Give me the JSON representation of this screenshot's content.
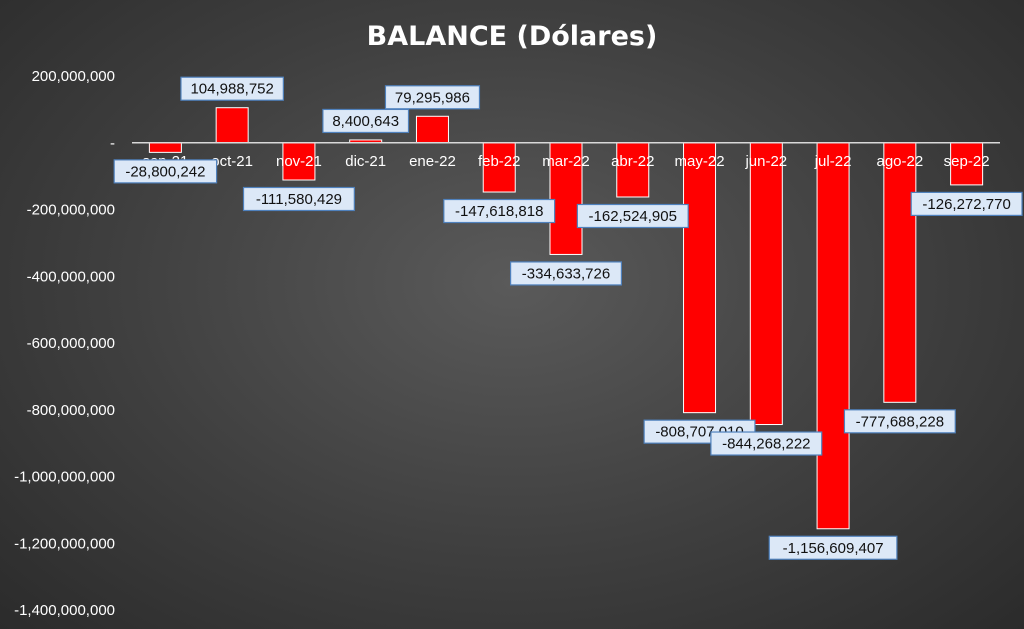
{
  "chart_data": {
    "type": "bar",
    "title": "BALANCE (Dólares)",
    "categories": [
      "sep-21",
      "oct-21",
      "nov-21",
      "dic-21",
      "ene-22",
      "feb-22",
      "mar-22",
      "abr-22",
      "may-22",
      "jun-22",
      "jul-22",
      "ago-22",
      "sep-22"
    ],
    "values": [
      -28800242,
      104988752,
      -111580429,
      8400643,
      79295986,
      -147618818,
      -334633726,
      -162524905,
      -808707010,
      -844268222,
      -1156609407,
      -777688228,
      -126272770
    ],
    "data_labels": [
      "-28,800,242",
      "104,988,752",
      "-111,580,429",
      "8,400,643",
      "79,295,986",
      "-147,618,818",
      "-334,633,726",
      "-162,524,905",
      "-808,707,010",
      "-844,268,222",
      "-1,156,609,407",
      "-777,688,228",
      "-126,272,770"
    ],
    "yticks": [
      200000000,
      0,
      -200000000,
      -400000000,
      -600000000,
      -800000000,
      -1000000000,
      -1200000000,
      -1400000000
    ],
    "ytick_labels": [
      "200,000,000",
      "-",
      "-200,000,000",
      "-400,000,000",
      "-600,000,000",
      "-800,000,000",
      "-1,000,000,000",
      "-1,200,000,000",
      "-1,400,000,000"
    ],
    "ylim": [
      -1400000000,
      200000000
    ],
    "xlabel": "",
    "ylabel": "",
    "grid": false,
    "legend": "none",
    "colors": {
      "bar": "#ff0000",
      "bar_edge": "#ffffff",
      "label_fill": "#dce8f7",
      "label_border": "#4f81bd",
      "axis_line": "#d9d9d9"
    }
  }
}
